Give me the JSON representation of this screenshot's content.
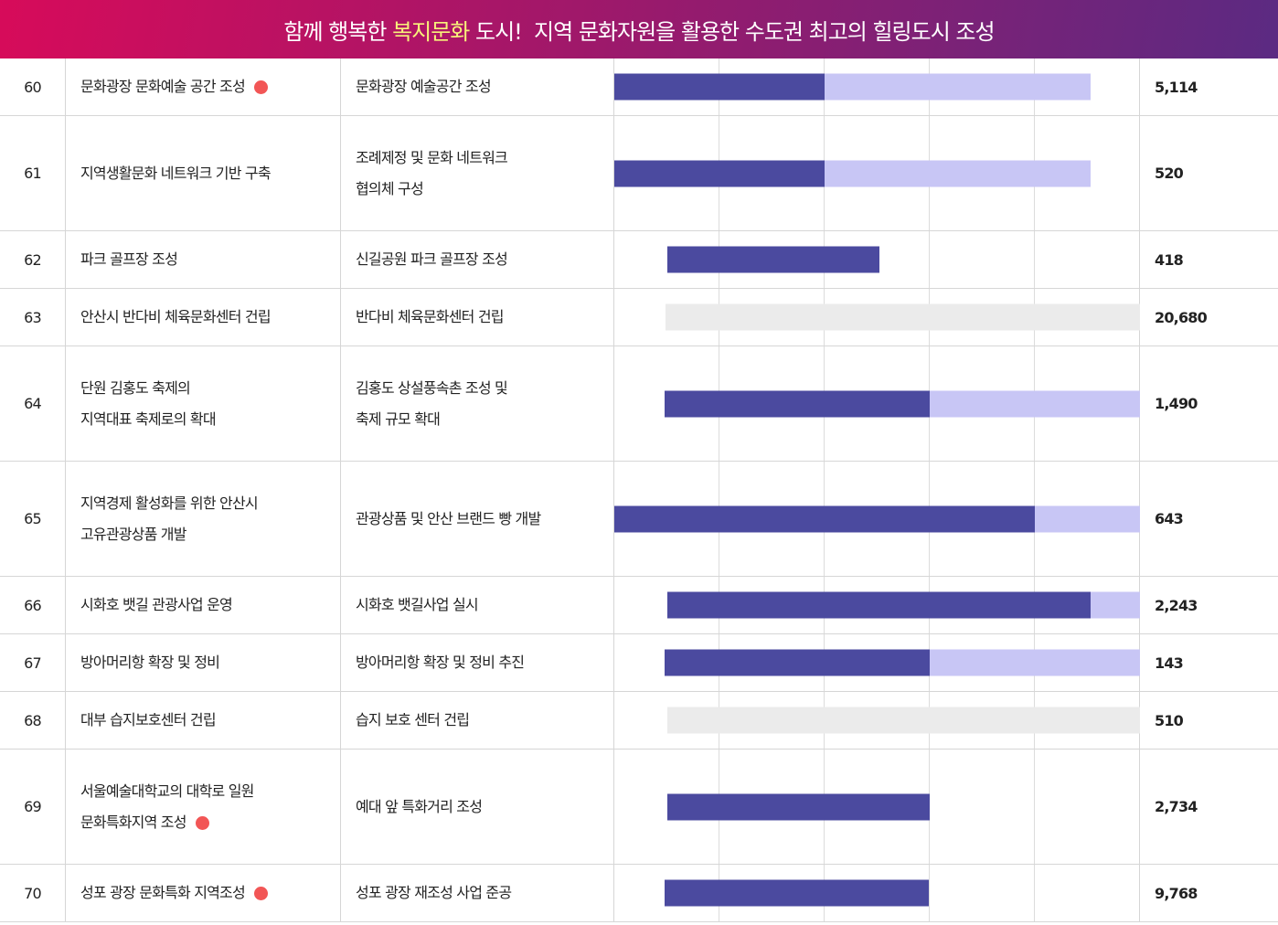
{
  "banner": {
    "pre": "함께 행복한 ",
    "highlight": "복지문화",
    "post": " 도시!  지역 문화자원을 활용한 수도권 최고의 힐링도시 조성"
  },
  "colors": {
    "done": "#4b4a9f",
    "planned": "#c8c6f5",
    "pending": "#ebebeb",
    "dot": "#f25656",
    "highlight": "#f8f27a"
  },
  "timeline_columns": 5,
  "rows": [
    {
      "no": "60",
      "name": [
        "문화광장 문화예술 공간 조성"
      ],
      "dot": true,
      "task": [
        "문화광장 예술공간 조성"
      ],
      "value": "5,114",
      "bars": [
        {
          "type": "done",
          "start": 0,
          "end": 2
        },
        {
          "type": "planned",
          "start": 2,
          "end": 4.53
        }
      ]
    },
    {
      "no": "61",
      "name": [
        "지역생활문화 네트워크 기반 구축"
      ],
      "dot": false,
      "task": [
        "조례제정 및 문화 네트워크",
        "협의체 구성"
      ],
      "value": "520",
      "bars": [
        {
          "type": "done",
          "start": 0,
          "end": 2
        },
        {
          "type": "planned",
          "start": 2,
          "end": 4.53
        }
      ]
    },
    {
      "no": "62",
      "name": [
        "파크 골프장 조성"
      ],
      "dot": false,
      "task": [
        "신길공원 파크 골프장 조성"
      ],
      "value": "418",
      "bars": [
        {
          "type": "done",
          "start": 0.5,
          "end": 2.52
        }
      ]
    },
    {
      "no": "63",
      "name": [
        "안산시 반다비 체육문화센터 건립"
      ],
      "dot": false,
      "task": [
        "반다비 체육문화센터 건립"
      ],
      "value": "20,680",
      "bars": [
        {
          "type": "pending",
          "start": 0.49,
          "end": 5
        }
      ]
    },
    {
      "no": "64",
      "name": [
        "단원 김홍도 축제의",
        "지역대표 축제로의 확대"
      ],
      "dot": false,
      "task": [
        "김홍도 상설풍속촌 조성 및",
        "축제 규모 확대"
      ],
      "value": "1,490",
      "bars": [
        {
          "type": "done",
          "start": 0.48,
          "end": 3
        },
        {
          "type": "planned",
          "start": 3,
          "end": 5
        }
      ]
    },
    {
      "no": "65",
      "name": [
        "지역경제 활성화를 위한 안산시",
        "고유관광상품 개발"
      ],
      "dot": false,
      "task": [
        "관광상품 및 안산 브랜드 빵 개발"
      ],
      "value": "643",
      "bars": [
        {
          "type": "done",
          "start": 0,
          "end": 4
        },
        {
          "type": "planned",
          "start": 4,
          "end": 5
        }
      ]
    },
    {
      "no": "66",
      "name": [
        "시화호 뱃길 관광사업 운영"
      ],
      "dot": false,
      "task": [
        "시화호 뱃길사업 실시"
      ],
      "value": "2,243",
      "bars": [
        {
          "type": "done",
          "start": 0.5,
          "end": 4.53
        },
        {
          "type": "planned",
          "start": 4.53,
          "end": 5
        }
      ]
    },
    {
      "no": "67",
      "name": [
        "방아머리항 확장 및 정비"
      ],
      "dot": false,
      "task": [
        "방아머리항 확장 및 정비 추진"
      ],
      "value": "143",
      "bars": [
        {
          "type": "done",
          "start": 0.48,
          "end": 3
        },
        {
          "type": "planned",
          "start": 3,
          "end": 5
        }
      ]
    },
    {
      "no": "68",
      "name": [
        "대부 습지보호센터 건립"
      ],
      "dot": false,
      "task": [
        "습지 보호 센터 건립"
      ],
      "value": "510",
      "bars": [
        {
          "type": "pending",
          "start": 0.5,
          "end": 5
        }
      ]
    },
    {
      "no": "69",
      "name": [
        "서울예술대학교의 대학로 일원",
        "문화특화지역 조성"
      ],
      "dot": true,
      "task": [
        "예대 앞 특화거리 조성"
      ],
      "value": "2,734",
      "bars": [
        {
          "type": "done",
          "start": 0.5,
          "end": 3
        }
      ]
    },
    {
      "no": "70",
      "name": [
        "성포 광장 문화특화 지역조성"
      ],
      "dot": true,
      "task": [
        "성포 광장 재조성 사업 준공"
      ],
      "value": "9,768",
      "bars": [
        {
          "type": "done",
          "start": 0.48,
          "end": 2.99
        }
      ]
    }
  ]
}
